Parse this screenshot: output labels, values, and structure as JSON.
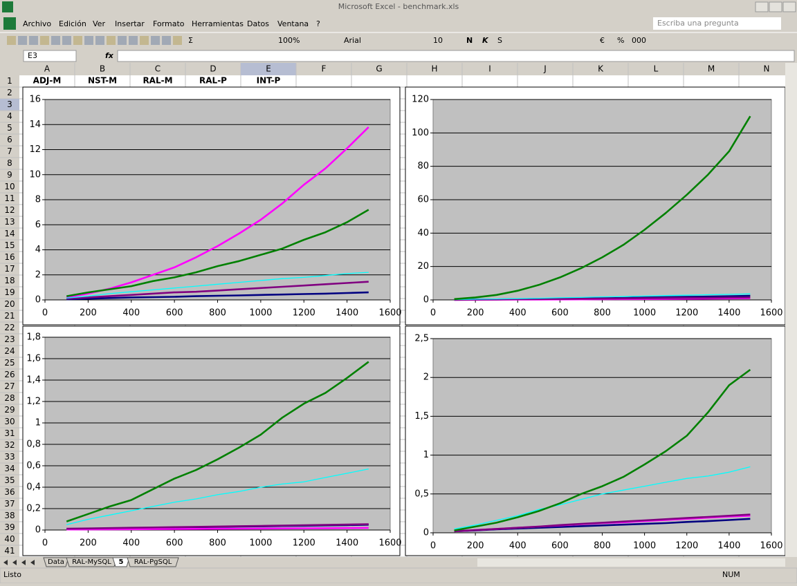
{
  "window": {
    "title": "Microsoft Excel - benchmark.xls"
  },
  "menu": [
    "Archivo",
    "Edición",
    "Ver",
    "Insertar",
    "Formato",
    "Herramientas",
    "Datos",
    "Ventana",
    "?"
  ],
  "help_box": "Escriba una pregunta",
  "toolbar": {
    "sum": "Σ",
    "zoom": "100%",
    "font": "Arial",
    "size": "10",
    "bold": "N",
    "italic": "K",
    "underline": "S",
    "euro": "€",
    "percent": "%",
    "thousands": "000"
  },
  "formula_bar": {
    "cell": "E3",
    "fx": "fx"
  },
  "columns": [
    "A",
    "B",
    "C",
    "D",
    "E",
    "F",
    "G",
    "H",
    "I",
    "J",
    "K",
    "L",
    "M",
    "N"
  ],
  "rows": [
    1,
    2,
    3,
    4,
    5,
    6,
    7,
    8,
    9,
    10,
    11,
    12,
    13,
    14,
    15,
    16,
    17,
    18,
    19,
    20,
    21,
    22,
    23,
    24,
    25,
    26,
    27,
    28,
    29,
    30,
    31,
    32,
    33,
    34,
    35,
    36,
    37,
    38,
    39,
    40,
    41
  ],
  "chart_data": [
    {
      "type": "line",
      "x": [
        100,
        200,
        300,
        400,
        500,
        600,
        700,
        800,
        900,
        1000,
        1100,
        1200,
        1300,
        1400,
        1500
      ],
      "xlim": [
        0,
        1600
      ],
      "xticks": [
        0,
        200,
        400,
        600,
        800,
        1000,
        1200,
        1400,
        1600
      ],
      "ylim": [
        0,
        16
      ],
      "yticks": [
        0,
        2,
        4,
        6,
        8,
        10,
        12,
        14,
        16
      ],
      "grid": true,
      "series": [
        {
          "name": "ADJ-M",
          "color": "#000080",
          "values": [
            0.05,
            0.1,
            0.15,
            0.2,
            0.22,
            0.25,
            0.3,
            0.33,
            0.36,
            0.4,
            0.43,
            0.47,
            0.5,
            0.55,
            0.6
          ]
        },
        {
          "name": "NST-M",
          "color": "#ff00ff",
          "values": [
            0.2,
            0.5,
            0.9,
            1.4,
            2.0,
            2.6,
            3.4,
            4.3,
            5.3,
            6.4,
            7.7,
            9.2,
            10.5,
            12.1,
            13.8
          ]
        },
        {
          "name": "RAL-M",
          "color": "#800080",
          "values": [
            0.1,
            0.2,
            0.3,
            0.4,
            0.5,
            0.6,
            0.65,
            0.75,
            0.85,
            0.95,
            1.05,
            1.15,
            1.25,
            1.35,
            1.45
          ]
        },
        {
          "name": "RAL-P",
          "color": "#00ffff",
          "values": [
            0.15,
            0.3,
            0.5,
            0.65,
            0.8,
            0.95,
            1.1,
            1.25,
            1.4,
            1.55,
            1.7,
            1.8,
            1.95,
            2.1,
            2.2
          ]
        },
        {
          "name": "INT-P",
          "color": "#008000",
          "values": [
            0.3,
            0.6,
            0.85,
            1.1,
            1.5,
            1.8,
            2.2,
            2.7,
            3.1,
            3.6,
            4.1,
            4.8,
            5.4,
            6.2,
            7.2
          ]
        }
      ]
    },
    {
      "type": "line",
      "x": [
        100,
        200,
        300,
        400,
        500,
        600,
        700,
        800,
        900,
        1000,
        1100,
        1200,
        1300,
        1400,
        1500
      ],
      "xlim": [
        0,
        1600
      ],
      "xticks": [
        0,
        200,
        400,
        600,
        800,
        1000,
        1200,
        1400,
        1600
      ],
      "ylim": [
        0,
        120
      ],
      "yticks": [
        0,
        20,
        40,
        60,
        80,
        100,
        120
      ],
      "grid": true,
      "series": [
        {
          "color": "#000080",
          "values": [
            0.1,
            0.2,
            0.3,
            0.4,
            0.6,
            0.7,
            0.9,
            1.0,
            1.2,
            1.4,
            1.6,
            1.8,
            2.0,
            2.2,
            2.5
          ]
        },
        {
          "color": "#ff00ff",
          "values": [
            0.05,
            0.1,
            0.15,
            0.2,
            0.25,
            0.3,
            0.35,
            0.4,
            0.5,
            0.55,
            0.6,
            0.7,
            0.8,
            0.9,
            1.0
          ]
        },
        {
          "color": "#800080",
          "values": [
            0.1,
            0.2,
            0.3,
            0.4,
            0.5,
            0.6,
            0.7,
            0.8,
            0.9,
            1.0,
            1.1,
            1.2,
            1.3,
            1.4,
            1.5
          ]
        },
        {
          "color": "#00ffff",
          "values": [
            0.2,
            0.4,
            0.6,
            0.8,
            1.0,
            1.3,
            1.5,
            1.8,
            2.0,
            2.3,
            2.6,
            2.8,
            3.1,
            3.3,
            3.6
          ]
        },
        {
          "color": "#008000",
          "values": [
            0.5,
            1.5,
            3,
            5.5,
            9,
            13.5,
            19,
            25.5,
            33,
            42,
            52,
            63,
            75,
            89,
            110
          ]
        }
      ]
    },
    {
      "type": "line",
      "x": [
        100,
        200,
        300,
        400,
        500,
        600,
        700,
        800,
        900,
        1000,
        1100,
        1200,
        1300,
        1400,
        1500
      ],
      "xlim": [
        0,
        1600
      ],
      "xticks": [
        0,
        200,
        400,
        600,
        800,
        1000,
        1200,
        1400,
        1600
      ],
      "ylim": [
        0,
        1.8
      ],
      "yticks": [
        0,
        {
          "value": 0.2,
          "label": "0,2"
        },
        {
          "value": 0.4,
          "label": "0,4"
        },
        {
          "value": 0.6,
          "label": "0,6"
        },
        {
          "value": 0.8,
          "label": "0,8"
        },
        1,
        {
          "value": 1.2,
          "label": "1,2"
        },
        {
          "value": 1.4,
          "label": "1,4"
        },
        {
          "value": 1.6,
          "label": "1,6"
        },
        {
          "value": 1.8,
          "label": "1,8"
        }
      ],
      "grid": true,
      "series": [
        {
          "color": "#000080",
          "values": [
            0.01,
            0.012,
            0.015,
            0.018,
            0.02,
            0.023,
            0.026,
            0.03,
            0.032,
            0.035,
            0.038,
            0.04,
            0.043,
            0.046,
            0.05
          ]
        },
        {
          "color": "#ff00ff",
          "values": [
            0.005,
            0.006,
            0.007,
            0.008,
            0.009,
            0.01,
            0.011,
            0.012,
            0.013,
            0.014,
            0.015,
            0.016,
            0.017,
            0.018,
            0.02
          ]
        },
        {
          "color": "#800080",
          "values": [
            0.012,
            0.015,
            0.018,
            0.021,
            0.024,
            0.027,
            0.03,
            0.033,
            0.036,
            0.039,
            0.042,
            0.045,
            0.048,
            0.051,
            0.055
          ]
        },
        {
          "color": "#00ffff",
          "values": [
            0.05,
            0.1,
            0.14,
            0.18,
            0.22,
            0.26,
            0.29,
            0.33,
            0.36,
            0.4,
            0.43,
            0.45,
            0.49,
            0.53,
            0.57
          ]
        },
        {
          "color": "#008000",
          "values": [
            0.08,
            0.15,
            0.22,
            0.28,
            0.38,
            0.48,
            0.56,
            0.66,
            0.77,
            0.89,
            1.05,
            1.18,
            1.28,
            1.42,
            1.57
          ]
        }
      ]
    },
    {
      "type": "line",
      "x": [
        100,
        200,
        300,
        400,
        500,
        600,
        700,
        800,
        900,
        1000,
        1100,
        1200,
        1300,
        1400,
        1500
      ],
      "xlim": [
        0,
        1600
      ],
      "xticks": [
        0,
        200,
        400,
        600,
        800,
        1000,
        1200,
        1400,
        1600
      ],
      "ylim": [
        0,
        2.5
      ],
      "yticks": [
        0,
        {
          "value": 0.5,
          "label": "0,5"
        },
        1,
        {
          "value": 1.5,
          "label": "1,5"
        },
        2,
        {
          "value": 2.5,
          "label": "2,5"
        }
      ],
      "grid": true,
      "series": [
        {
          "color": "#000080",
          "values": [
            0.02,
            0.03,
            0.045,
            0.055,
            0.065,
            0.075,
            0.085,
            0.095,
            0.105,
            0.115,
            0.125,
            0.14,
            0.15,
            0.165,
            0.18
          ]
        },
        {
          "color": "#ff00ff",
          "values": [
            0.02,
            0.035,
            0.05,
            0.065,
            0.08,
            0.095,
            0.11,
            0.125,
            0.135,
            0.15,
            0.165,
            0.18,
            0.195,
            0.21,
            0.22
          ]
        },
        {
          "color": "#800080",
          "values": [
            0.02,
            0.035,
            0.05,
            0.065,
            0.08,
            0.1,
            0.115,
            0.13,
            0.145,
            0.16,
            0.175,
            0.19,
            0.205,
            0.22,
            0.235
          ]
        },
        {
          "color": "#00ffff",
          "values": [
            0.05,
            0.1,
            0.16,
            0.22,
            0.3,
            0.36,
            0.43,
            0.5,
            0.55,
            0.6,
            0.65,
            0.7,
            0.73,
            0.78,
            0.85
          ]
        },
        {
          "color": "#008000",
          "values": [
            0.03,
            0.08,
            0.13,
            0.2,
            0.28,
            0.38,
            0.5,
            0.6,
            0.72,
            0.88,
            1.05,
            1.25,
            1.55,
            1.9,
            2.1
          ]
        }
      ]
    }
  ],
  "sheet_tabs": [
    "Data",
    "RAL-MySQL",
    "5",
    "RAL-PgSQL"
  ],
  "status": {
    "left": "Listo",
    "right": "NUM"
  }
}
